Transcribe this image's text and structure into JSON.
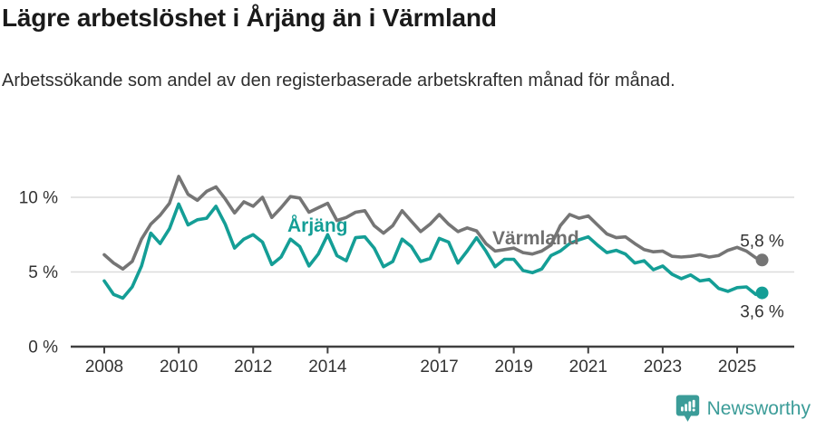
{
  "chart_data": {
    "type": "line",
    "title": "Lägre arbetslöshet i Årjäng än i Värmland",
    "subtitle": "Arbetssökande som andel av den registerbaserade arbetskraften månad för månad.",
    "grid": "horizontal",
    "legend_position": "inline-labels",
    "x_axis": {
      "ticks": [
        2008,
        2010,
        2012,
        2014,
        2017,
        2019,
        2021,
        2023,
        2025
      ],
      "range": [
        2007.55,
        2026.5
      ]
    },
    "y_axis": {
      "unit": "%",
      "ticks": [
        {
          "value": 0,
          "label": "0 %"
        },
        {
          "value": 5,
          "label": "5 %"
        },
        {
          "value": 10,
          "label": "10 %"
        }
      ],
      "range": [
        0,
        12
      ]
    },
    "colors": {
      "axis": "#404040",
      "grid": "#dcdcdc",
      "tick_label": "#333333",
      "annotation": "#333333"
    },
    "series": [
      {
        "id": "varmland",
        "name": "Värmland",
        "color": "#757575",
        "label_color": "#6f6f6f",
        "end_label": "5,8 %",
        "end_label_position": "above",
        "x": [
          2008.0,
          2008.25,
          2008.5,
          2008.75,
          2009.0,
          2009.25,
          2009.5,
          2009.75,
          2010.0,
          2010.25,
          2010.5,
          2010.75,
          2011.0,
          2011.25,
          2011.5,
          2011.75,
          2012.0,
          2012.25,
          2012.5,
          2012.75,
          2013.0,
          2013.25,
          2013.5,
          2013.75,
          2014.0,
          2014.25,
          2014.5,
          2014.75,
          2015.0,
          2015.25,
          2015.5,
          2015.75,
          2016.0,
          2016.25,
          2016.5,
          2016.75,
          2017.0,
          2017.25,
          2017.5,
          2017.75,
          2018.0,
          2018.25,
          2018.5,
          2018.75,
          2019.0,
          2019.25,
          2019.5,
          2019.75,
          2020.0,
          2020.25,
          2020.5,
          2020.75,
          2021.0,
          2021.25,
          2021.5,
          2021.75,
          2022.0,
          2022.25,
          2022.5,
          2022.75,
          2023.0,
          2023.25,
          2023.5,
          2023.75,
          2024.0,
          2024.25,
          2024.5,
          2024.75,
          2025.0,
          2025.25,
          2025.5,
          2025.67
        ],
        "values": [
          6.15,
          5.6,
          5.2,
          5.7,
          7.2,
          8.2,
          8.8,
          9.6,
          11.4,
          10.2,
          9.8,
          10.4,
          10.7,
          9.9,
          8.95,
          9.7,
          9.4,
          10.0,
          8.65,
          9.3,
          10.05,
          9.95,
          9.0,
          9.3,
          9.6,
          8.45,
          8.65,
          9.0,
          9.1,
          8.1,
          7.6,
          8.1,
          9.1,
          8.4,
          7.7,
          8.2,
          8.85,
          8.2,
          7.7,
          7.95,
          7.75,
          6.9,
          6.4,
          6.5,
          6.6,
          6.3,
          6.2,
          6.4,
          6.8,
          8.1,
          8.85,
          8.6,
          8.75,
          8.15,
          7.55,
          7.3,
          7.35,
          6.9,
          6.5,
          6.35,
          6.4,
          6.05,
          6.0,
          6.05,
          6.15,
          6.0,
          6.1,
          6.45,
          6.65,
          6.4,
          5.95,
          5.8
        ],
        "label": {
          "text": "Värmland"
        }
      },
      {
        "id": "arjang",
        "name": "Årjäng",
        "color": "#149e96",
        "label_color": "#149e96",
        "end_label": "3,6 %",
        "end_label_position": "below",
        "x": [
          2008.0,
          2008.25,
          2008.5,
          2008.75,
          2009.0,
          2009.25,
          2009.5,
          2009.75,
          2010.0,
          2010.25,
          2010.5,
          2010.75,
          2011.0,
          2011.25,
          2011.5,
          2011.75,
          2012.0,
          2012.25,
          2012.5,
          2012.75,
          2013.0,
          2013.25,
          2013.5,
          2013.75,
          2014.0,
          2014.25,
          2014.5,
          2014.75,
          2015.0,
          2015.25,
          2015.5,
          2015.75,
          2016.0,
          2016.25,
          2016.5,
          2016.75,
          2017.0,
          2017.25,
          2017.5,
          2017.75,
          2018.0,
          2018.25,
          2018.5,
          2018.75,
          2019.0,
          2019.25,
          2019.5,
          2019.75,
          2020.0,
          2020.25,
          2020.5,
          2020.75,
          2021.0,
          2021.25,
          2021.5,
          2021.75,
          2022.0,
          2022.25,
          2022.5,
          2022.75,
          2023.0,
          2023.25,
          2023.5,
          2023.75,
          2024.0,
          2024.25,
          2024.5,
          2024.75,
          2025.0,
          2025.25,
          2025.5,
          2025.67
        ],
        "values": [
          4.4,
          3.5,
          3.25,
          4.0,
          5.4,
          7.6,
          6.9,
          7.9,
          9.55,
          8.15,
          8.5,
          8.6,
          9.4,
          8.2,
          6.6,
          7.2,
          7.5,
          7.0,
          5.5,
          6.0,
          7.2,
          6.7,
          5.4,
          6.2,
          7.5,
          6.1,
          5.75,
          7.3,
          7.35,
          6.6,
          5.35,
          5.7,
          7.2,
          6.7,
          5.7,
          5.9,
          7.25,
          7.0,
          5.6,
          6.4,
          7.3,
          6.4,
          5.35,
          5.85,
          5.85,
          5.1,
          4.95,
          5.2,
          6.1,
          6.4,
          6.9,
          7.15,
          7.35,
          6.8,
          6.3,
          6.45,
          6.2,
          5.6,
          5.75,
          5.15,
          5.4,
          4.85,
          4.55,
          4.8,
          4.4,
          4.5,
          3.9,
          3.7,
          3.95,
          4.0,
          3.5,
          3.6
        ],
        "label": {
          "text": "Årjäng"
        }
      }
    ]
  },
  "footer": {
    "brand": "Newsworthy",
    "brand_color": "#3b9c98"
  }
}
